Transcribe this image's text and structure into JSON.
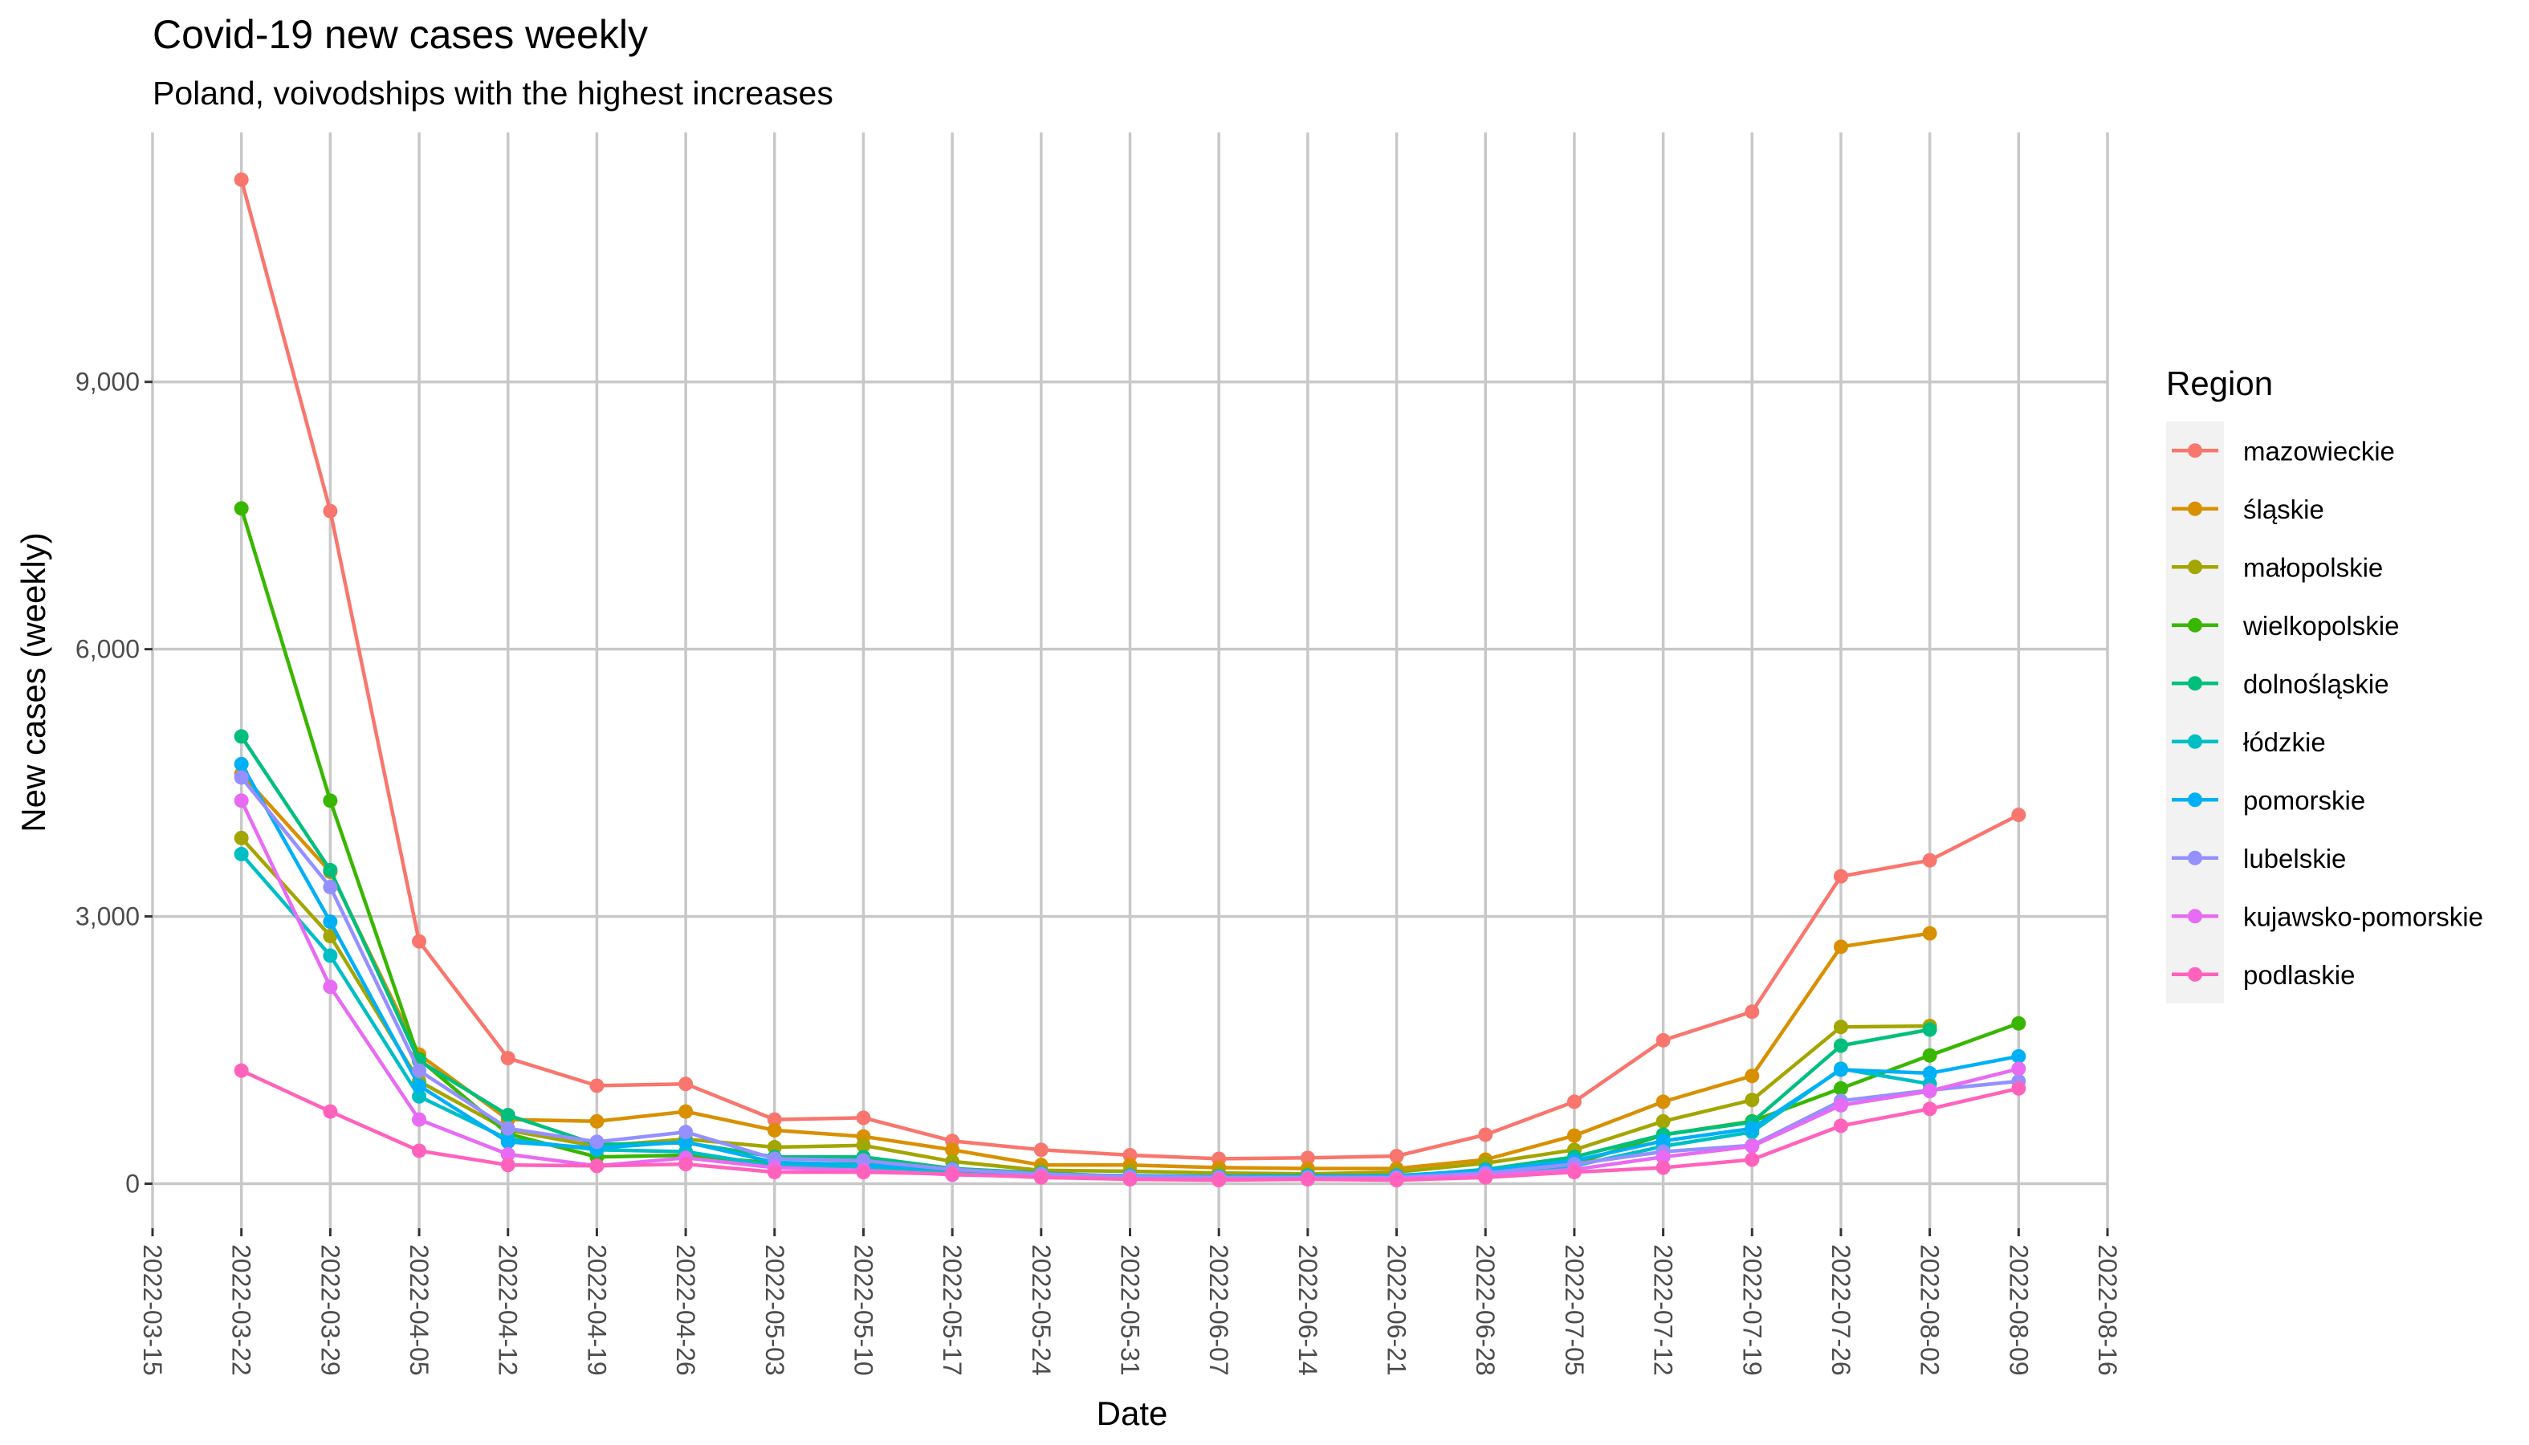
{
  "chart_data": {
    "type": "line",
    "title": "Covid-19 new cases weekly",
    "subtitle": "Poland, voivodships with the highest increases",
    "xlabel": "Date",
    "ylabel": "New cases (weekly)",
    "x_ticks": [
      "2022-03-15",
      "2022-03-22",
      "2022-03-29",
      "2022-04-05",
      "2022-04-12",
      "2022-04-19",
      "2022-04-26",
      "2022-05-03",
      "2022-05-10",
      "2022-05-17",
      "2022-05-24",
      "2022-05-31",
      "2022-06-07",
      "2022-06-14",
      "2022-06-21",
      "2022-06-28",
      "2022-07-05",
      "2022-07-12",
      "2022-07-19",
      "2022-07-26",
      "2022-08-02",
      "2022-08-09",
      "2022-08-16"
    ],
    "y_ticks": [
      0,
      3000,
      6000,
      9000
    ],
    "y_tick_labels": [
      "0",
      "3,000",
      "6,000",
      "9,000"
    ],
    "xlim": [
      "2022-03-15",
      "2022-08-16"
    ],
    "ylim": [
      -500,
      11800
    ],
    "grid": true,
    "legend": {
      "title": "Region",
      "position": "right"
    },
    "x": [
      "2022-03-22",
      "2022-03-29",
      "2022-04-05",
      "2022-04-12",
      "2022-04-19",
      "2022-04-26",
      "2022-05-03",
      "2022-05-10",
      "2022-05-17",
      "2022-05-24",
      "2022-05-31",
      "2022-06-07",
      "2022-06-14",
      "2022-06-21",
      "2022-06-28",
      "2022-07-05",
      "2022-07-12",
      "2022-07-19",
      "2022-07-26",
      "2022-08-02",
      "2022-08-09"
    ],
    "series": [
      {
        "name": "mazowieckie",
        "color": "#F8766D",
        "values": [
          11270,
          7550,
          2720,
          1410,
          1100,
          1120,
          720,
          740,
          480,
          380,
          320,
          280,
          290,
          310,
          550,
          920,
          1610,
          1930,
          3450,
          3630,
          4140
        ]
      },
      {
        "name": "śląskie",
        "color": "#D89000",
        "values": [
          4600,
          3500,
          1450,
          720,
          700,
          810,
          600,
          530,
          380,
          210,
          210,
          180,
          170,
          170,
          270,
          540,
          920,
          1210,
          2660,
          2810,
          null
        ]
      },
      {
        "name": "małopolskie",
        "color": "#A3A500",
        "values": [
          3880,
          2780,
          1150,
          600,
          420,
          500,
          410,
          430,
          250,
          150,
          140,
          120,
          110,
          130,
          230,
          380,
          700,
          940,
          1760,
          1770,
          null
        ]
      },
      {
        "name": "wielkopolskie",
        "color": "#39B600",
        "values": [
          7580,
          4300,
          1400,
          560,
          300,
          320,
          230,
          220,
          140,
          100,
          70,
          60,
          70,
          60,
          110,
          220,
          550,
          700,
          1070,
          1440,
          1800
        ]
      },
      {
        "name": "dolnośląskie",
        "color": "#00BF7D",
        "values": [
          5020,
          3520,
          1380,
          770,
          440,
          460,
          300,
          300,
          170,
          120,
          80,
          80,
          90,
          80,
          160,
          300,
          550,
          690,
          1550,
          1730,
          null
        ]
      },
      {
        "name": "łódzkie",
        "color": "#00BFC4",
        "values": [
          3700,
          2560,
          980,
          500,
          380,
          360,
          200,
          190,
          120,
          80,
          60,
          50,
          60,
          50,
          110,
          200,
          420,
          580,
          1290,
          1120,
          null
        ]
      },
      {
        "name": "pomorskie",
        "color": "#00B0F6",
        "values": [
          4710,
          2940,
          1100,
          470,
          400,
          470,
          240,
          210,
          160,
          100,
          90,
          80,
          80,
          90,
          150,
          260,
          480,
          620,
          1280,
          1240,
          1430
        ]
      },
      {
        "name": "lubelskie",
        "color": "#9590FF",
        "values": [
          4560,
          3330,
          1270,
          620,
          470,
          580,
          280,
          260,
          160,
          110,
          80,
          70,
          70,
          70,
          120,
          220,
          360,
          430,
          930,
          1050,
          1150
        ]
      },
      {
        "name": "kujawsko-pomorskie",
        "color": "#E76BF3",
        "values": [
          4300,
          2210,
          720,
          330,
          200,
          290,
          180,
          150,
          100,
          80,
          50,
          50,
          50,
          60,
          90,
          160,
          300,
          420,
          880,
          1040,
          1290
        ]
      },
      {
        "name": "podlaskie",
        "color": "#FF62BC",
        "values": [
          1270,
          810,
          370,
          210,
          200,
          220,
          130,
          130,
          110,
          70,
          50,
          40,
          50,
          40,
          70,
          130,
          180,
          270,
          650,
          840,
          1070
        ]
      }
    ]
  }
}
